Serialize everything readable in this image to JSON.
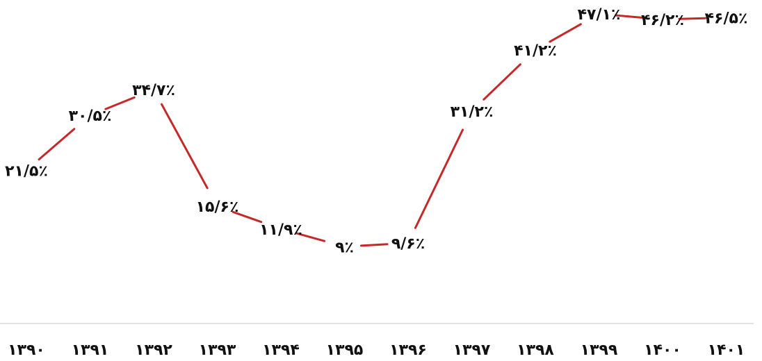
{
  "chart_data": {
    "type": "line",
    "categories": [
      "۱۳۹۰",
      "۱۳۹۱",
      "۱۳۹۲",
      "۱۳۹۳",
      "۱۳۹۴",
      "۱۳۹۵",
      "۱۳۹۶",
      "۱۳۹۷",
      "۱۳۹۸",
      "۱۳۹۹",
      "۱۴۰۰",
      "۱۴۰۱"
    ],
    "values": [
      21.5,
      30.5,
      34.7,
      15.6,
      11.9,
      9.0,
      9.6,
      31.2,
      41.2,
      47.1,
      46.2,
      46.5
    ],
    "data_labels": [
      "۲۱/۵٪",
      "۳۰/۵٪",
      "۳۴/۷٪",
      "۱۵/۶٪",
      "۱۱/۹٪",
      "۹٪",
      "۹/۶٪",
      "۳۱/۲٪",
      "۴۱/۲٪",
      "۴۷/۱٪",
      "۴۶/۲٪",
      "۴۶/۵٪"
    ],
    "title": "",
    "xlabel": "",
    "ylabel": "",
    "ylim": [
      0,
      50
    ],
    "grid": false,
    "legend": "none",
    "line_color": "#c62828",
    "baseline_color": "#d9d9d9"
  }
}
